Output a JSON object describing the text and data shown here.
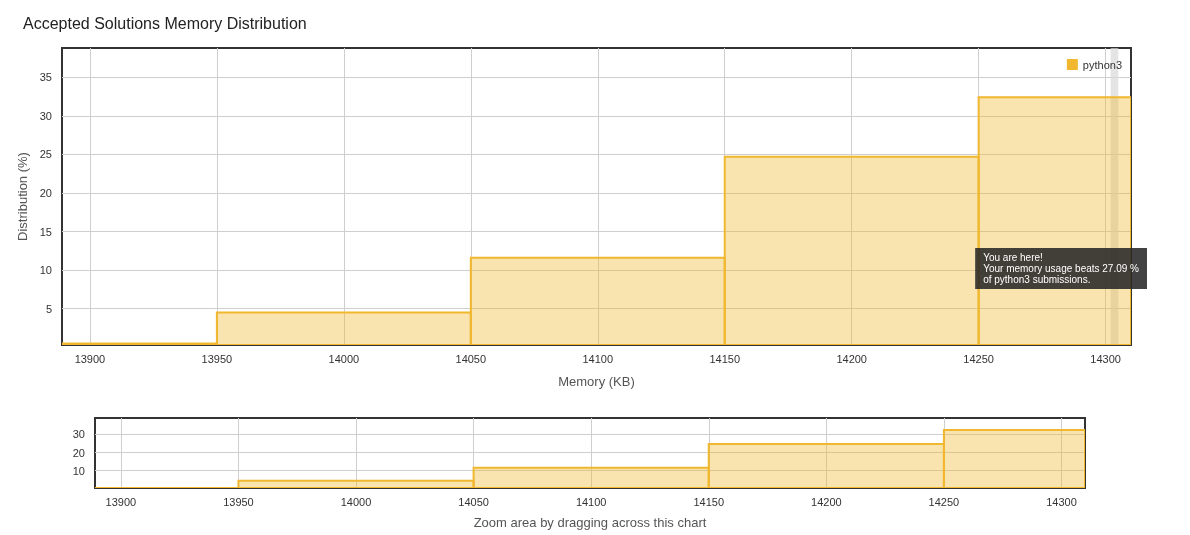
{
  "chart_data": [
    {
      "type": "histogram",
      "title": "Accepted Solutions Memory Distribution",
      "xlabel": "Memory (KB)",
      "ylabel": "Distribution (%)",
      "bins": [
        13889,
        13950,
        14050,
        14150,
        14250,
        14310
      ],
      "series": [
        {
          "name": "python3",
          "color": "#f0b72f",
          "values": [
            0.5,
            4.5,
            11.6,
            24.7,
            32.4
          ]
        }
      ],
      "xlim": [
        13889,
        14310
      ],
      "xticks": [
        13900,
        13950,
        14000,
        14050,
        14100,
        14150,
        14200,
        14250,
        14300
      ],
      "ylim": [
        0.3,
        38.8
      ],
      "yticks": [
        5,
        10,
        15,
        20,
        25,
        30,
        35
      ],
      "grid": true,
      "legend": "top right",
      "bands": [
        {
          "axis": "x",
          "from": 14302,
          "to": 14305,
          "color": "#d9d9d9"
        }
      ],
      "annotations": [
        "You are here!\nYour memory usage beats 27.09 %\nof python3 submissions."
      ]
    },
    {
      "type": "histogram",
      "xlabel": "Zoom area by dragging across this chart",
      "bins": [
        13889,
        13950,
        14050,
        14150,
        14250,
        14310
      ],
      "series": [
        {
          "color": "#f0b72f",
          "values": [
            0.5,
            4.5,
            11.6,
            24.7,
            32.4
          ]
        }
      ],
      "xlim": [
        13889,
        14310
      ],
      "xticks": [
        13900,
        13950,
        14000,
        14050,
        14100,
        14150,
        14200,
        14250,
        14300
      ],
      "ylim": [
        0.5,
        39
      ],
      "yticks": [
        10,
        20,
        30
      ],
      "grid": true
    }
  ]
}
